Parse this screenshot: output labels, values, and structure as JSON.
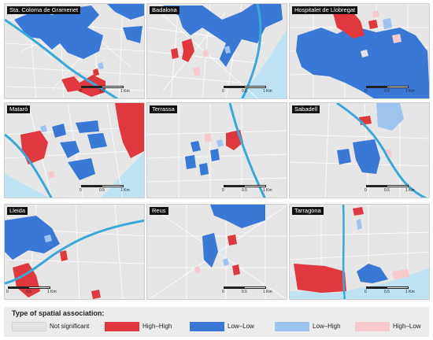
{
  "colors": {
    "background": "#e9e9e9",
    "roads": "#ffffff",
    "water": "#3aa9d8",
    "sea": "#bfe2f2",
    "not_significant": "#e4e4e4",
    "high_high": "#e0383e",
    "low_low": "#3a78d6",
    "low_high": "#9ec3ef",
    "high_low": "#f6c9cd"
  },
  "scale": {
    "labels": [
      "0",
      "0.5",
      "1 Km"
    ]
  },
  "panels": [
    {
      "title": "Sta. Coloma de Gramenet"
    },
    {
      "title": "Badalona"
    },
    {
      "title": "Hospitalet de Llobregat"
    },
    {
      "title": "Mataró"
    },
    {
      "title": "Terrassa"
    },
    {
      "title": "Sabadell"
    },
    {
      "title": "Lleida"
    },
    {
      "title": "Reus"
    },
    {
      "title": "Tarragona"
    }
  ],
  "legend": {
    "title": "Type of spatial association:",
    "items": [
      {
        "label": "Not significant",
        "color": "#e4e4e4"
      },
      {
        "label": "High–High",
        "color": "#e0383e"
      },
      {
        "label": "Low–Low",
        "color": "#3a78d6"
      },
      {
        "label": "Low–High",
        "color": "#9ec3ef"
      },
      {
        "label": "High–Low",
        "color": "#f6c9cd"
      }
    ]
  }
}
